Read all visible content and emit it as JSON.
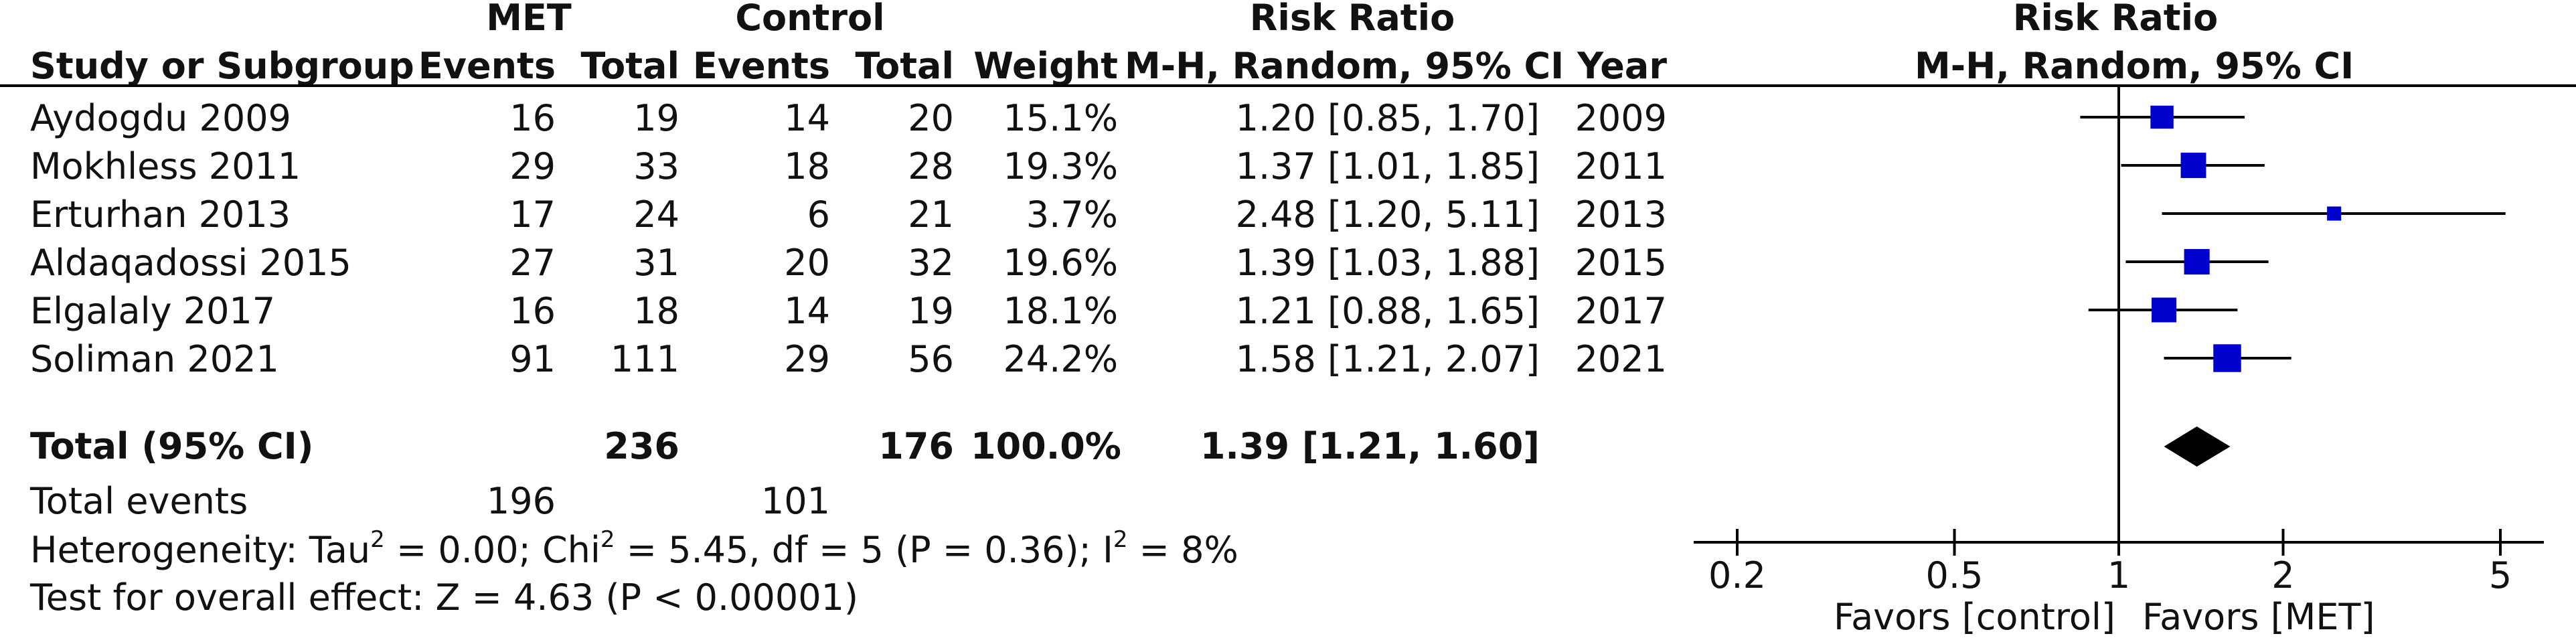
{
  "chart_data": {
    "type": "forest",
    "header": {
      "group1": "MET",
      "group2": "Control",
      "effect": "Risk Ratio",
      "plot_title": "Risk Ratio",
      "study": "Study or Subgroup",
      "events": "Events",
      "total": "Total",
      "weight": "Weight",
      "method": "M-H, Random, 95% CI",
      "year": "Year",
      "plot_method": "M-H, Random, 95% CI"
    },
    "studies": [
      {
        "name": "Aydogdu 2009",
        "e1": "16",
        "n1": "19",
        "e2": "14",
        "n2": "20",
        "weight": "15.1%",
        "ci_text": "1.20 [0.85, 1.70]",
        "year": "2009",
        "rr": 1.2,
        "lo": 0.85,
        "hi": 1.7,
        "w": 15.1
      },
      {
        "name": "Mokhless 2011",
        "e1": "29",
        "n1": "33",
        "e2": "18",
        "n2": "28",
        "weight": "19.3%",
        "ci_text": "1.37 [1.01, 1.85]",
        "year": "2011",
        "rr": 1.37,
        "lo": 1.01,
        "hi": 1.85,
        "w": 19.3
      },
      {
        "name": "Erturhan 2013",
        "e1": "17",
        "n1": "24",
        "e2": "6",
        "n2": "21",
        "weight": "3.7%",
        "ci_text": "2.48 [1.20, 5.11]",
        "year": "2013",
        "rr": 2.48,
        "lo": 1.2,
        "hi": 5.11,
        "w": 3.7
      },
      {
        "name": "Aldaqadossi 2015",
        "e1": "27",
        "n1": "31",
        "e2": "20",
        "n2": "32",
        "weight": "19.6%",
        "ci_text": "1.39 [1.03, 1.88]",
        "year": "2015",
        "rr": 1.39,
        "lo": 1.03,
        "hi": 1.88,
        "w": 19.6
      },
      {
        "name": "Elgalaly 2017",
        "e1": "16",
        "n1": "18",
        "e2": "14",
        "n2": "19",
        "weight": "18.1%",
        "ci_text": "1.21 [0.88, 1.65]",
        "year": "2017",
        "rr": 1.21,
        "lo": 0.88,
        "hi": 1.65,
        "w": 18.1
      },
      {
        "name": "Soliman 2021",
        "e1": "91",
        "n1": "111",
        "e2": "29",
        "n2": "56",
        "weight": "24.2%",
        "ci_text": "1.58 [1.21, 2.07]",
        "year": "2021",
        "rr": 1.58,
        "lo": 1.21,
        "hi": 2.07,
        "w": 24.2
      }
    ],
    "total": {
      "label": "Total (95% CI)",
      "n1": "236",
      "n2": "176",
      "weight": "100.0%",
      "ci_text": "1.39 [1.21, 1.60]",
      "rr": 1.39,
      "lo": 1.21,
      "hi": 1.6
    },
    "total_events": {
      "label": "Total events",
      "e1": "196",
      "e2": "101"
    },
    "heterogeneity": {
      "prefix": "Heterogeneity: Tau",
      "tau_rest": " = 0.00; Chi",
      "chi_rest": " = 5.45, df = 5 (P = 0.36); I",
      "i_rest": " = 8%",
      "sup": "2"
    },
    "overall": "Test for overall effect: Z = 4.63 (P < 0.00001)",
    "axis": {
      "scale": "log",
      "ticks": [
        0.2,
        0.5,
        1,
        2,
        5
      ],
      "tick_labels": [
        "0.2",
        "0.5",
        "1",
        "2",
        "5"
      ],
      "null_value": 1,
      "range": [
        0.2,
        5
      ]
    },
    "favors_left": "Favors [control]",
    "favors_right": "Favors [MET]",
    "colors": {
      "marker": "#0000cc",
      "diamond": "#000000",
      "line": "#000000"
    }
  }
}
